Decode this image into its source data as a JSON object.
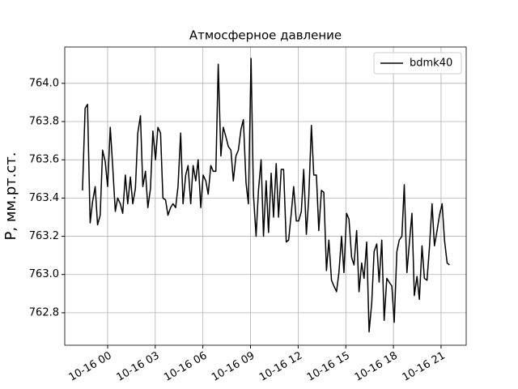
{
  "chart_data": {
    "type": "line",
    "title": "Атмосферное давление",
    "ylabel": "P, мм.рт.ст.",
    "x": [
      "10-15 22:25",
      "10-15 22:35",
      "10-15 22:44",
      "10-15 22:54",
      "10-15 23:03",
      "10-15 23:13",
      "10-15 23:22",
      "10-15 23:32",
      "10-15 23:41",
      "10-15 23:51",
      "10-16 00:00",
      "10-16 00:10",
      "10-16 00:19",
      "10-16 00:29",
      "10-16 00:38",
      "10-16 00:48",
      "10-16 00:57",
      "10-16 01:07",
      "10-16 01:16",
      "10-16 01:26",
      "10-16 01:35",
      "10-16 01:45",
      "10-16 01:54",
      "10-16 02:04",
      "10-16 02:13",
      "10-16 02:23",
      "10-16 02:32",
      "10-16 02:42",
      "10-16 02:51",
      "10-16 03:01",
      "10-16 03:10",
      "10-16 03:20",
      "10-16 03:29",
      "10-16 03:39",
      "10-16 03:48",
      "10-16 03:58",
      "10-16 04:07",
      "10-16 04:17",
      "10-16 04:26",
      "10-16 04:36",
      "10-16 04:45",
      "10-16 04:55",
      "10-16 05:04",
      "10-16 05:14",
      "10-16 05:23",
      "10-16 05:33",
      "10-16 05:42",
      "10-16 05:52",
      "10-16 06:01",
      "10-16 06:11",
      "10-16 06:20",
      "10-16 06:30",
      "10-16 06:39",
      "10-16 06:49",
      "10-16 06:58",
      "10-16 07:08",
      "10-16 07:17",
      "10-16 07:27",
      "10-16 07:36",
      "10-16 07:46",
      "10-16 07:55",
      "10-16 08:05",
      "10-16 08:14",
      "10-16 08:24",
      "10-16 08:33",
      "10-16 08:43",
      "10-16 08:52",
      "10-16 09:02",
      "10-16 09:11",
      "10-16 09:21",
      "10-16 09:30",
      "10-16 09:40",
      "10-16 09:49",
      "10-16 09:59",
      "10-16 10:08",
      "10-16 10:18",
      "10-16 10:27",
      "10-16 10:37",
      "10-16 10:46",
      "10-16 10:56",
      "10-16 11:05",
      "10-16 11:15",
      "10-16 11:24",
      "10-16 11:34",
      "10-16 11:43",
      "10-16 11:53",
      "10-16 12:02",
      "10-16 12:12",
      "10-16 12:21",
      "10-16 12:31",
      "10-16 12:40",
      "10-16 12:50",
      "10-16 12:59",
      "10-16 13:09",
      "10-16 13:18",
      "10-16 13:28",
      "10-16 13:37",
      "10-16 13:47",
      "10-16 13:56",
      "10-16 14:06",
      "10-16 14:15",
      "10-16 14:25",
      "10-16 14:34",
      "10-16 14:44",
      "10-16 14:53",
      "10-16 15:03",
      "10-16 15:12",
      "10-16 15:22",
      "10-16 15:31",
      "10-16 15:41",
      "10-16 15:50",
      "10-16 16:00",
      "10-16 16:09",
      "10-16 16:19",
      "10-16 16:28",
      "10-16 16:38",
      "10-16 16:47",
      "10-16 16:57",
      "10-16 17:06",
      "10-16 17:16",
      "10-16 17:25",
      "10-16 17:35",
      "10-16 17:44",
      "10-16 17:54",
      "10-16 18:03",
      "10-16 18:13",
      "10-16 18:22",
      "10-16 18:32",
      "10-16 18:41",
      "10-16 18:51",
      "10-16 19:00",
      "10-16 19:10",
      "10-16 19:19",
      "10-16 19:29",
      "10-16 19:38",
      "10-16 19:48",
      "10-16 19:57",
      "10-16 20:07",
      "10-16 20:16",
      "10-16 20:26",
      "10-16 20:35",
      "10-16 20:45",
      "10-16 20:54",
      "10-16 21:04",
      "10-16 21:13",
      "10-16 21:23",
      "10-16 21:32"
    ],
    "series": [
      {
        "name": "bdmk40",
        "color": "#000000",
        "values": [
          763.44,
          763.87,
          763.89,
          763.27,
          763.38,
          763.46,
          763.26,
          763.31,
          763.65,
          763.59,
          763.46,
          763.77,
          763.57,
          763.33,
          763.4,
          763.37,
          763.32,
          763.52,
          763.37,
          763.51,
          763.37,
          763.45,
          763.74,
          763.83,
          763.46,
          763.54,
          763.35,
          763.45,
          763.75,
          763.6,
          763.77,
          763.74,
          763.4,
          763.39,
          763.31,
          763.35,
          763.37,
          763.35,
          763.46,
          763.74,
          763.37,
          763.52,
          763.57,
          763.37,
          763.57,
          763.49,
          763.6,
          763.35,
          763.52,
          763.49,
          763.42,
          763.57,
          763.54,
          763.54,
          764.1,
          763.62,
          763.77,
          763.72,
          763.67,
          763.65,
          763.49,
          763.62,
          763.65,
          763.76,
          763.81,
          763.48,
          763.37,
          764.13,
          763.42,
          763.2,
          763.44,
          763.6,
          763.2,
          763.49,
          763.22,
          763.53,
          763.3,
          763.58,
          763.3,
          763.55,
          763.55,
          763.17,
          763.18,
          763.32,
          763.46,
          763.28,
          763.28,
          763.33,
          763.55,
          763.21,
          763.4,
          763.78,
          763.52,
          763.52,
          763.23,
          763.44,
          763.43,
          763.02,
          763.18,
          762.97,
          762.94,
          762.91,
          763.01,
          763.2,
          763.01,
          763.32,
          763.29,
          763.09,
          763.05,
          763.23,
          762.91,
          763.06,
          762.98,
          763.17,
          762.7,
          762.85,
          763.12,
          763.16,
          762.96,
          763.18,
          762.76,
          762.98,
          762.96,
          762.94,
          762.75,
          763.12,
          763.18,
          763.2,
          763.47,
          763.01,
          763.16,
          763.32,
          762.89,
          762.99,
          762.87,
          763.15,
          762.98,
          762.97,
          763.14,
          763.37,
          763.15,
          763.23,
          763.31,
          763.37,
          763.18,
          763.06,
          763.05
        ]
      }
    ],
    "xlim": [
      "10-15 21:18",
      "10-16 22:35"
    ],
    "xticks": [
      "10-16 00",
      "10-16 03",
      "10-16 06",
      "10-16 09",
      "10-16 12",
      "10-16 15",
      "10-16 18",
      "10-16 21"
    ],
    "ylim": [
      762.63,
      764.19
    ],
    "yticks": [
      762.8,
      {
        "value": 763,
        "label": "763.0"
      },
      763.2,
      763.4,
      763.6,
      763.8,
      {
        "value": 764,
        "label": "764.0"
      }
    ],
    "grid": true,
    "legend": "upper right"
  }
}
